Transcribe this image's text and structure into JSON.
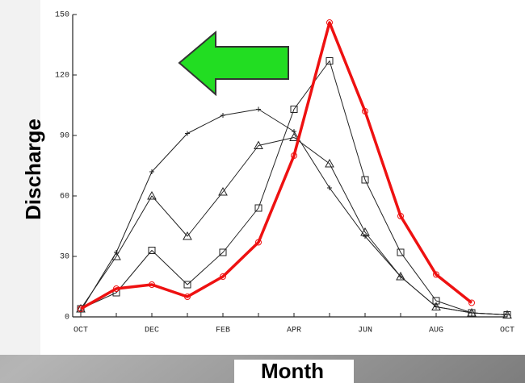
{
  "chart_data": {
    "type": "line",
    "ylabel": "Discharge",
    "xlabel": "Month",
    "categories": [
      "OCT",
      null,
      "DEC",
      null,
      "FEB",
      null,
      "APR",
      null,
      "JUN",
      null,
      "AUG",
      null,
      "OCT"
    ],
    "ylim": [
      0,
      150
    ],
    "yticks": [
      0,
      30,
      60,
      90,
      120,
      150
    ],
    "series": [
      {
        "color": "#222222",
        "marker": "plus",
        "width": 1,
        "values": [
          3,
          32,
          72,
          91,
          100,
          103,
          92,
          64,
          40,
          20,
          5,
          2,
          1
        ]
      },
      {
        "color": "#222222",
        "marker": "triangle",
        "width": 1,
        "values": [
          4,
          30,
          60,
          40,
          62,
          85,
          89,
          76,
          42,
          20,
          5,
          2,
          1
        ]
      },
      {
        "color": "#222222",
        "marker": "square",
        "width": 1,
        "values": [
          4,
          12,
          33,
          16,
          32,
          54,
          103,
          127,
          68,
          32,
          8,
          2,
          1
        ]
      },
      {
        "color": "#ee1111",
        "marker": "circle",
        "width": 3.5,
        "values": [
          4,
          14,
          16,
          10,
          20,
          37,
          80,
          146,
          102,
          50,
          21,
          7,
          null
        ]
      }
    ]
  }
}
